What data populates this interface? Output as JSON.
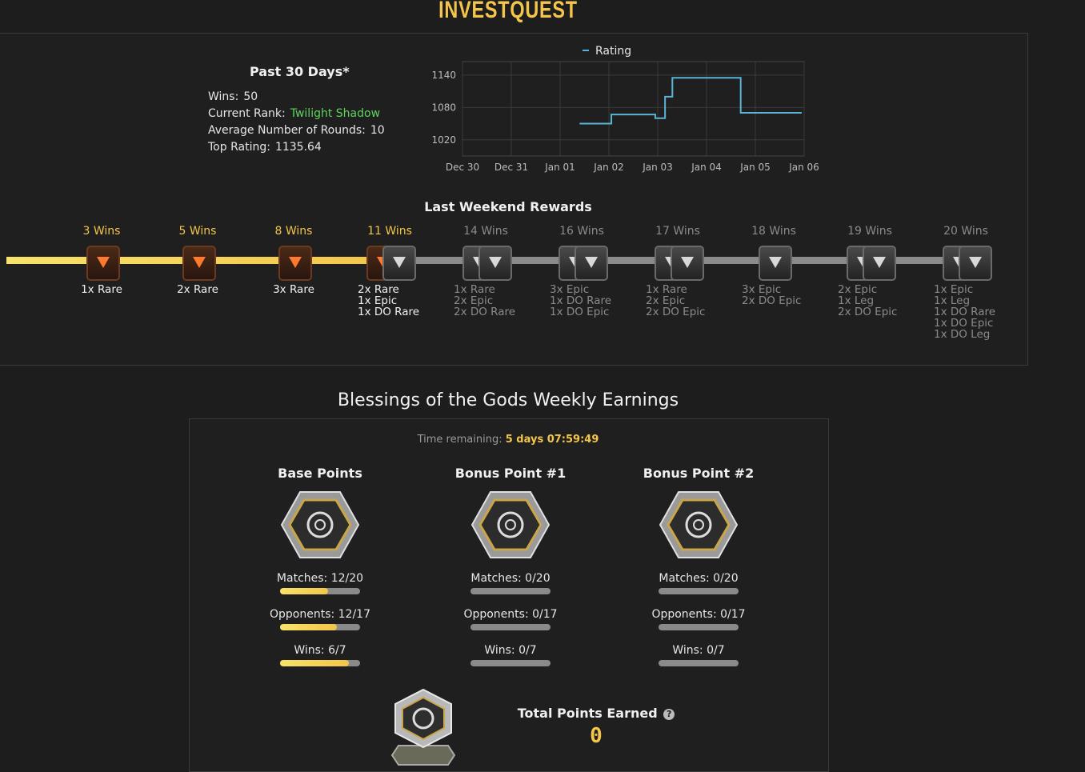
{
  "app": {
    "title": "InvestQuest"
  },
  "past30": {
    "heading": "Past 30 Days*",
    "wins_label": "Wins:",
    "wins": "50",
    "rank_label": "Current Rank:",
    "rank": "Twilight Shadow",
    "rounds_label": "Average Number of Rounds:",
    "rounds": "10",
    "top_label": "Top Rating:",
    "top": "1135.64"
  },
  "chart_data": {
    "type": "line",
    "legend": "Rating",
    "categories": [
      "Dec 30",
      "Dec 31",
      "Jan 01",
      "Jan 02",
      "Jan 03",
      "Jan 04",
      "Jan 05",
      "Jan 06"
    ],
    "yticks": [
      1020,
      1080,
      1140
    ],
    "ylim": [
      990,
      1165
    ],
    "series": [
      {
        "name": "Rating",
        "color": "#5ab4d8",
        "steps": [
          {
            "x": 2.4,
            "y": 1050
          },
          {
            "x": 3.05,
            "y": 1050
          },
          {
            "x": 3.05,
            "y": 1067
          },
          {
            "x": 3.95,
            "y": 1067
          },
          {
            "x": 3.95,
            "y": 1060
          },
          {
            "x": 4.15,
            "y": 1060
          },
          {
            "x": 4.15,
            "y": 1100
          },
          {
            "x": 4.3,
            "y": 1100
          },
          {
            "x": 4.3,
            "y": 1135
          },
          {
            "x": 5.7,
            "y": 1135
          },
          {
            "x": 5.7,
            "y": 1070
          },
          {
            "x": 6.95,
            "y": 1070
          }
        ]
      }
    ]
  },
  "rewards": {
    "title": "Last Weekend Rewards",
    "completed_tiers": 4,
    "tiers": [
      {
        "wins": "3 Wins",
        "items": [
          "1x Rare"
        ],
        "chests": [
          "rare"
        ]
      },
      {
        "wins": "5 Wins",
        "items": [
          "2x Rare"
        ],
        "chests": [
          "rare"
        ]
      },
      {
        "wins": "8 Wins",
        "items": [
          "3x Rare"
        ],
        "chests": [
          "rare"
        ]
      },
      {
        "wins": "11 Wins",
        "items": [
          "2x Rare",
          "1x Epic",
          "1x DO Rare"
        ],
        "chests": [
          "rare",
          "epic"
        ]
      },
      {
        "wins": "14 Wins",
        "items": [
          "1x Rare",
          "2x Epic",
          "2x DO Rare"
        ],
        "chests": [
          "epic",
          "epic"
        ]
      },
      {
        "wins": "16 Wins",
        "items": [
          "3x Epic",
          "1x DO Rare",
          "1x DO Epic"
        ],
        "chests": [
          "epic",
          "epic"
        ]
      },
      {
        "wins": "17 Wins",
        "items": [
          "1x Rare",
          "2x Epic",
          "2x DO Epic"
        ],
        "chests": [
          "epic",
          "epic"
        ]
      },
      {
        "wins": "18 Wins",
        "items": [
          "3x Epic",
          "2x DO Epic"
        ],
        "chests": [
          "epic"
        ]
      },
      {
        "wins": "19 Wins",
        "items": [
          "2x Epic",
          "1x Leg",
          "2x DO Epic"
        ],
        "chests": [
          "epic",
          "epic"
        ]
      },
      {
        "wins": "20 Wins",
        "items": [
          "1x Epic",
          "1x Leg",
          "1x DO Rare",
          "1x DO Epic",
          "1x DO Leg"
        ],
        "chests": [
          "epic",
          "epic"
        ]
      }
    ]
  },
  "blessings": {
    "title": "Blessings of the Gods Weekly Earnings",
    "time_label": "Time remaining:",
    "time_value": "5 days 07:59:49",
    "columns": [
      {
        "title": "Base Points",
        "matches": "Matches:  12/20",
        "opponents": "Opponents:  12/17",
        "wins": "Wins:  6/7",
        "m": 0.6,
        "o": 0.7059,
        "w": 0.8571
      },
      {
        "title": "Bonus Point #1",
        "matches": "Matches:  0/20",
        "opponents": "Opponents:  0/17",
        "wins": "Wins:  0/7",
        "m": 0,
        "o": 0,
        "w": 0
      },
      {
        "title": "Bonus Point #2",
        "matches": "Matches:  0/20",
        "opponents": "Opponents:  0/17",
        "wins": "Wins:  0/7",
        "m": 0,
        "o": 0,
        "w": 0
      }
    ],
    "total_label": "Total Points Earned",
    "total_value": "0",
    "help_icon": "?"
  }
}
